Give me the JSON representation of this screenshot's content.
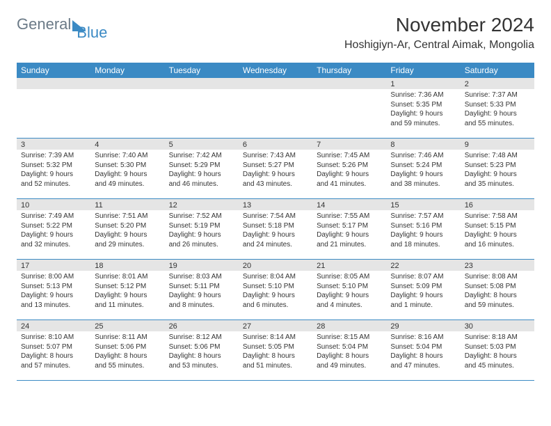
{
  "logo": {
    "part1": "General",
    "part2": "Blue"
  },
  "header": {
    "month": "November 2024",
    "location": "Hoshigiyn-Ar, Central Aimak, Mongolia"
  },
  "colors": {
    "accent": "#3b8ac4",
    "header_gray": "#e5e5e5",
    "text": "#333333",
    "logo_gray": "#6b7a87"
  },
  "day_names": [
    "Sunday",
    "Monday",
    "Tuesday",
    "Wednesday",
    "Thursday",
    "Friday",
    "Saturday"
  ],
  "weeks": [
    [
      {
        "num": "",
        "sunrise": "",
        "sunset": "",
        "daylight": ""
      },
      {
        "num": "",
        "sunrise": "",
        "sunset": "",
        "daylight": ""
      },
      {
        "num": "",
        "sunrise": "",
        "sunset": "",
        "daylight": ""
      },
      {
        "num": "",
        "sunrise": "",
        "sunset": "",
        "daylight": ""
      },
      {
        "num": "",
        "sunrise": "",
        "sunset": "",
        "daylight": ""
      },
      {
        "num": "1",
        "sunrise": "Sunrise: 7:36 AM",
        "sunset": "Sunset: 5:35 PM",
        "daylight": "Daylight: 9 hours and 59 minutes."
      },
      {
        "num": "2",
        "sunrise": "Sunrise: 7:37 AM",
        "sunset": "Sunset: 5:33 PM",
        "daylight": "Daylight: 9 hours and 55 minutes."
      }
    ],
    [
      {
        "num": "3",
        "sunrise": "Sunrise: 7:39 AM",
        "sunset": "Sunset: 5:32 PM",
        "daylight": "Daylight: 9 hours and 52 minutes."
      },
      {
        "num": "4",
        "sunrise": "Sunrise: 7:40 AM",
        "sunset": "Sunset: 5:30 PM",
        "daylight": "Daylight: 9 hours and 49 minutes."
      },
      {
        "num": "5",
        "sunrise": "Sunrise: 7:42 AM",
        "sunset": "Sunset: 5:29 PM",
        "daylight": "Daylight: 9 hours and 46 minutes."
      },
      {
        "num": "6",
        "sunrise": "Sunrise: 7:43 AM",
        "sunset": "Sunset: 5:27 PM",
        "daylight": "Daylight: 9 hours and 43 minutes."
      },
      {
        "num": "7",
        "sunrise": "Sunrise: 7:45 AM",
        "sunset": "Sunset: 5:26 PM",
        "daylight": "Daylight: 9 hours and 41 minutes."
      },
      {
        "num": "8",
        "sunrise": "Sunrise: 7:46 AM",
        "sunset": "Sunset: 5:24 PM",
        "daylight": "Daylight: 9 hours and 38 minutes."
      },
      {
        "num": "9",
        "sunrise": "Sunrise: 7:48 AM",
        "sunset": "Sunset: 5:23 PM",
        "daylight": "Daylight: 9 hours and 35 minutes."
      }
    ],
    [
      {
        "num": "10",
        "sunrise": "Sunrise: 7:49 AM",
        "sunset": "Sunset: 5:22 PM",
        "daylight": "Daylight: 9 hours and 32 minutes."
      },
      {
        "num": "11",
        "sunrise": "Sunrise: 7:51 AM",
        "sunset": "Sunset: 5:20 PM",
        "daylight": "Daylight: 9 hours and 29 minutes."
      },
      {
        "num": "12",
        "sunrise": "Sunrise: 7:52 AM",
        "sunset": "Sunset: 5:19 PM",
        "daylight": "Daylight: 9 hours and 26 minutes."
      },
      {
        "num": "13",
        "sunrise": "Sunrise: 7:54 AM",
        "sunset": "Sunset: 5:18 PM",
        "daylight": "Daylight: 9 hours and 24 minutes."
      },
      {
        "num": "14",
        "sunrise": "Sunrise: 7:55 AM",
        "sunset": "Sunset: 5:17 PM",
        "daylight": "Daylight: 9 hours and 21 minutes."
      },
      {
        "num": "15",
        "sunrise": "Sunrise: 7:57 AM",
        "sunset": "Sunset: 5:16 PM",
        "daylight": "Daylight: 9 hours and 18 minutes."
      },
      {
        "num": "16",
        "sunrise": "Sunrise: 7:58 AM",
        "sunset": "Sunset: 5:15 PM",
        "daylight": "Daylight: 9 hours and 16 minutes."
      }
    ],
    [
      {
        "num": "17",
        "sunrise": "Sunrise: 8:00 AM",
        "sunset": "Sunset: 5:13 PM",
        "daylight": "Daylight: 9 hours and 13 minutes."
      },
      {
        "num": "18",
        "sunrise": "Sunrise: 8:01 AM",
        "sunset": "Sunset: 5:12 PM",
        "daylight": "Daylight: 9 hours and 11 minutes."
      },
      {
        "num": "19",
        "sunrise": "Sunrise: 8:03 AM",
        "sunset": "Sunset: 5:11 PM",
        "daylight": "Daylight: 9 hours and 8 minutes."
      },
      {
        "num": "20",
        "sunrise": "Sunrise: 8:04 AM",
        "sunset": "Sunset: 5:10 PM",
        "daylight": "Daylight: 9 hours and 6 minutes."
      },
      {
        "num": "21",
        "sunrise": "Sunrise: 8:05 AM",
        "sunset": "Sunset: 5:10 PM",
        "daylight": "Daylight: 9 hours and 4 minutes."
      },
      {
        "num": "22",
        "sunrise": "Sunrise: 8:07 AM",
        "sunset": "Sunset: 5:09 PM",
        "daylight": "Daylight: 9 hours and 1 minute."
      },
      {
        "num": "23",
        "sunrise": "Sunrise: 8:08 AM",
        "sunset": "Sunset: 5:08 PM",
        "daylight": "Daylight: 8 hours and 59 minutes."
      }
    ],
    [
      {
        "num": "24",
        "sunrise": "Sunrise: 8:10 AM",
        "sunset": "Sunset: 5:07 PM",
        "daylight": "Daylight: 8 hours and 57 minutes."
      },
      {
        "num": "25",
        "sunrise": "Sunrise: 8:11 AM",
        "sunset": "Sunset: 5:06 PM",
        "daylight": "Daylight: 8 hours and 55 minutes."
      },
      {
        "num": "26",
        "sunrise": "Sunrise: 8:12 AM",
        "sunset": "Sunset: 5:06 PM",
        "daylight": "Daylight: 8 hours and 53 minutes."
      },
      {
        "num": "27",
        "sunrise": "Sunrise: 8:14 AM",
        "sunset": "Sunset: 5:05 PM",
        "daylight": "Daylight: 8 hours and 51 minutes."
      },
      {
        "num": "28",
        "sunrise": "Sunrise: 8:15 AM",
        "sunset": "Sunset: 5:04 PM",
        "daylight": "Daylight: 8 hours and 49 minutes."
      },
      {
        "num": "29",
        "sunrise": "Sunrise: 8:16 AM",
        "sunset": "Sunset: 5:04 PM",
        "daylight": "Daylight: 8 hours and 47 minutes."
      },
      {
        "num": "30",
        "sunrise": "Sunrise: 8:18 AM",
        "sunset": "Sunset: 5:03 PM",
        "daylight": "Daylight: 8 hours and 45 minutes."
      }
    ]
  ]
}
